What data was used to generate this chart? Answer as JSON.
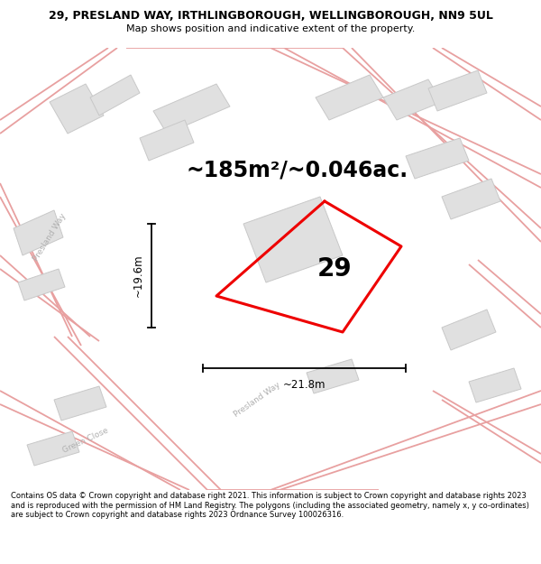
{
  "title_line1": "29, PRESLAND WAY, IRTHLINGBOROUGH, WELLINGBOROUGH, NN9 5UL",
  "title_line2": "Map shows position and indicative extent of the property.",
  "area_text": "~185m²/~0.046ac.",
  "property_number": "29",
  "dim_vertical": "~19.6m",
  "dim_horizontal": "~21.8m",
  "footer_text": "Contains OS data © Crown copyright and database right 2021. This information is subject to Crown copyright and database rights 2023 and is reproduced with the permission of HM Land Registry. The polygons (including the associated geometry, namely x, y co-ordinates) are subject to Crown copyright and database rights 2023 Ordnance Survey 100026316.",
  "map_bg": "#f8f8f8",
  "road_color": "#e8a0a0",
  "road_color2": "#d08080",
  "building_color": "#e0e0e0",
  "building_edge": "#c8c8c8",
  "property_color": "#ee0000",
  "dim_color": "#000000",
  "title_fontsize": 9.0,
  "subtitle_fontsize": 8.0,
  "footer_fontsize": 6.0,
  "area_fontsize": 17,
  "number_fontsize": 20,
  "dim_fontsize": 8.5
}
